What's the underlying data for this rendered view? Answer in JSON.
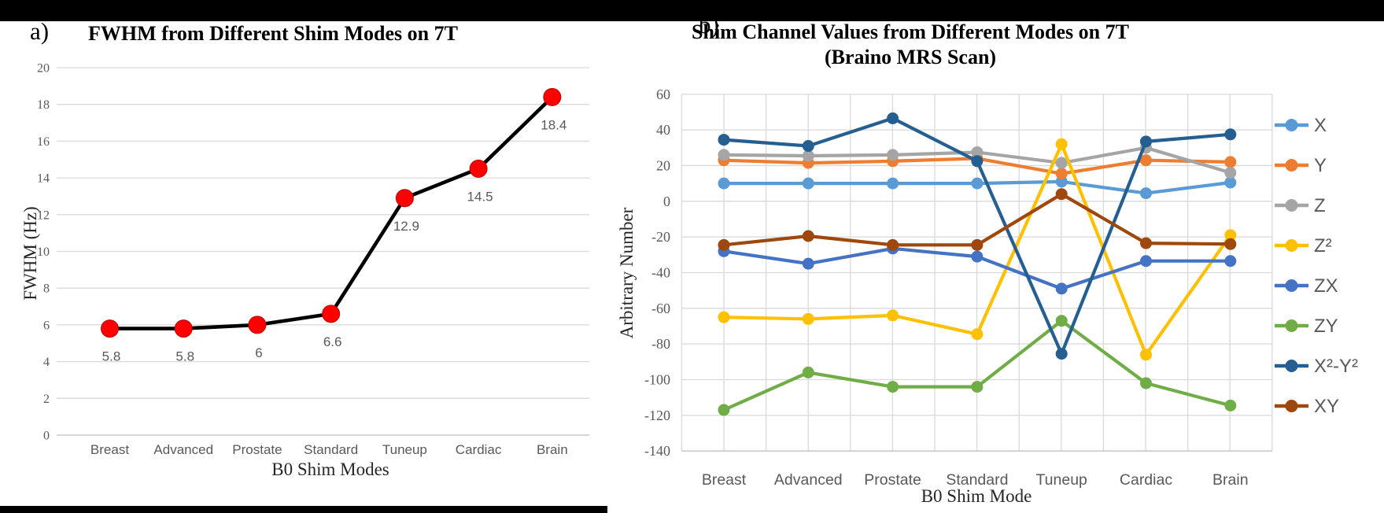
{
  "page": {
    "background": "#FFFFFF",
    "top_bar_color": "#000000",
    "bottom_bar_color": "#000000",
    "tick_label_color": "#595959",
    "gridline_color": "#D9D9D9",
    "axis_line_color": "#BFBFBF"
  },
  "chart_data": [
    {
      "type": "line",
      "panel_label": "a)",
      "title": "FWHM from Different Shim Modes on 7T",
      "xlabel": "B0 Shim Modes",
      "ylabel": "FWHM (Hz)",
      "ylim": [
        0,
        20
      ],
      "ytick_step": 2,
      "grid": "horizontal",
      "legend": false,
      "categories": [
        "Breast",
        "Advanced",
        "Prostate",
        "Standard",
        "Tuneup",
        "Cardiac",
        "Brain"
      ],
      "series": [
        {
          "name": "FWHM",
          "line_color": "#000000",
          "marker_color": "#FF0000",
          "marker_edge_color": "#C00000",
          "values": [
            5.8,
            5.8,
            6,
            6.6,
            12.9,
            14.5,
            18.4
          ],
          "data_labels": [
            "5.8",
            "5.8",
            "6",
            "6.6",
            "12.9",
            "14.5",
            "18.4"
          ]
        }
      ]
    },
    {
      "type": "line",
      "panel_label": "b)",
      "title": "Shim Channel Values from Different Modes on 7T",
      "subtitle": "(Braino MRS Scan)",
      "xlabel": "B0 Shim Mode",
      "ylabel": "Arbitrary Number",
      "ylim": [
        -140,
        60
      ],
      "ytick_step": 20,
      "grid": "both",
      "legend": true,
      "legend_position": "right",
      "categories": [
        "Breast",
        "Advanced",
        "Prostate",
        "Standard",
        "Tuneup",
        "Cardiac",
        "Brain"
      ],
      "series": [
        {
          "name": "X",
          "line_color": "#5B9BD5",
          "values": [
            10,
            10,
            10,
            10,
            11,
            4.5,
            10.5
          ]
        },
        {
          "name": "Y",
          "line_color": "#ED7D31",
          "values": [
            23,
            21.5,
            22.5,
            24,
            15.5,
            23,
            22
          ]
        },
        {
          "name": "Z",
          "line_color": "#A5A5A5",
          "values": [
            26,
            25.5,
            26,
            27.5,
            21.5,
            30,
            16
          ]
        },
        {
          "name": "Z²",
          "line_color": "#FFC000",
          "values": [
            -65,
            -66,
            -64,
            -74.5,
            32,
            -86,
            -19
          ]
        },
        {
          "name": "ZX",
          "line_color": "#4472C4",
          "values": [
            -28,
            -35,
            -26.5,
            -31,
            -49,
            -33.5,
            -33.5
          ]
        },
        {
          "name": "ZY",
          "line_color": "#70AD47",
          "values": [
            -117,
            -96,
            -104,
            -104,
            -67,
            -102,
            -114.5
          ]
        },
        {
          "name": "X²-Y²",
          "line_color": "#255E91",
          "values": [
            34.5,
            31,
            46.5,
            22.5,
            -85.5,
            33.5,
            37.5
          ]
        },
        {
          "name": "XY",
          "line_color": "#9E480E",
          "values": [
            -24.5,
            -19.5,
            -24.5,
            -24.5,
            4,
            -23.5,
            -24
          ]
        }
      ]
    }
  ]
}
